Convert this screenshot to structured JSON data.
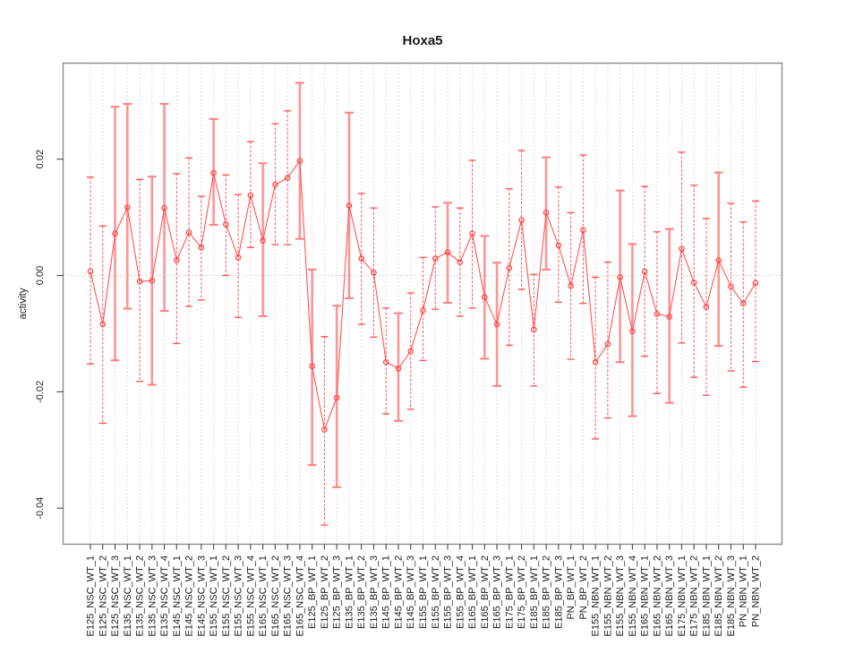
{
  "chart_data": {
    "type": "line",
    "subtype": "points-with-error-bars",
    "title": "Hoxa5",
    "xlabel": "",
    "ylabel": "activity",
    "legend": "none",
    "grid": "vertical dotted line at every category; dotted horizontal line at y=0",
    "ylim": [
      -0.0462,
      0.0365
    ],
    "yticks": [
      0.02,
      0.0,
      -0.02,
      -0.04
    ],
    "ytick_labels": [
      "0.02",
      "0.00",
      "-0.02",
      "-0.04"
    ],
    "marker": "open-circle",
    "categories": [
      "E125_NSC_WT_1",
      "E125_NSC_WT_2",
      "E125_NSC_WT_3",
      "E135_NSC_WT_1",
      "E135_NSC_WT_2",
      "E135_NSC_WT_3",
      "E135_NSC_WT_4",
      "E145_NSC_WT_1",
      "E145_NSC_WT_2",
      "E145_NSC_WT_3",
      "E155_NSC_WT_1",
      "E155_NSC_WT_2",
      "E155_NSC_WT_3",
      "E155_NSC_WT_4",
      "E165_NSC_WT_1",
      "E165_NSC_WT_2",
      "E165_NSC_WT_3",
      "E165_NSC_WT_4",
      "E125_BP_WT_1",
      "E125_BP_WT_2",
      "E125_BP_WT_3",
      "E135_BP_WT_1",
      "E135_BP_WT_2",
      "E135_BP_WT_3",
      "E145_BP_WT_1",
      "E145_BP_WT_2",
      "E145_BP_WT_3",
      "E155_BP_WT_1",
      "E155_BP_WT_2",
      "E155_BP_WT_3",
      "E155_BP_WT_4",
      "E165_BP_WT_1",
      "E165_BP_WT_2",
      "E165_BP_WT_3",
      "E175_BP_WT_1",
      "E175_BP_WT_2",
      "E185_BP_WT_1",
      "E185_BP_WT_2",
      "E185_BP_WT_3",
      "PN_BP_WT_1",
      "PN_BP_WT_2",
      "E155_NBN_WT_1",
      "E155_NBN_WT_2",
      "E155_NBN_WT_3",
      "E155_NBN_WT_4",
      "E165_NBN_WT_1",
      "E165_NBN_WT_2",
      "E165_NBN_WT_3",
      "E175_NBN_WT_1",
      "E175_NBN_WT_2",
      "E185_NBN_WT_1",
      "E185_NBN_WT_2",
      "E185_NBN_WT_3",
      "PN_NBN_WT_1",
      "PN_NBN_WT_2"
    ],
    "series": [
      {
        "name": "activity",
        "values": [
          0.0007,
          -0.0084,
          0.0072,
          0.0117,
          -0.001,
          -0.0009,
          0.0116,
          0.0026,
          0.0074,
          0.0048,
          0.0176,
          0.0088,
          0.0031,
          0.0138,
          0.006,
          0.0156,
          0.0168,
          0.0197,
          -0.0156,
          -0.0265,
          -0.021,
          0.012,
          0.0029,
          0.0005,
          -0.0149,
          -0.016,
          -0.013,
          -0.006,
          0.0029,
          0.004,
          0.0023,
          0.0072,
          -0.0037,
          -0.0084,
          0.0013,
          0.0095,
          -0.0093,
          0.0108,
          0.0052,
          -0.0018,
          0.0078,
          -0.0149,
          -0.0118,
          -0.0003,
          -0.0096,
          0.0007,
          -0.0066,
          -0.0071,
          0.0046,
          -0.0012,
          -0.0054,
          0.0026,
          -0.0019,
          -0.0048,
          -0.0013
        ]
      }
    ],
    "error_lower": [
      -0.0152,
      -0.0254,
      -0.0146,
      -0.0057,
      -0.0182,
      -0.0188,
      -0.0061,
      -0.0117,
      -0.0053,
      -0.0042,
      0.0087,
      0.0,
      -0.0072,
      0.0048,
      -0.007,
      0.0053,
      0.0053,
      0.0063,
      -0.0326,
      -0.0429,
      -0.0364,
      -0.0039,
      -0.0084,
      -0.0106,
      -0.0238,
      -0.025,
      -0.023,
      -0.0146,
      -0.0058,
      -0.0047,
      -0.007,
      -0.0056,
      -0.0143,
      -0.019,
      -0.012,
      -0.0024,
      -0.019,
      0.001,
      -0.0046,
      -0.0144,
      -0.0048,
      -0.0281,
      -0.0245,
      -0.0149,
      -0.0242,
      -0.0139,
      -0.0203,
      -0.0219,
      -0.0116,
      -0.0175,
      -0.0206,
      -0.0121,
      -0.0164,
      -0.0192,
      -0.0148
    ],
    "error_upper": [
      0.0169,
      0.0085,
      0.029,
      0.0295,
      0.0165,
      0.017,
      0.0295,
      0.0175,
      0.0202,
      0.0136,
      0.0269,
      0.0173,
      0.0139,
      0.023,
      0.0193,
      0.0261,
      0.0283,
      0.0331,
      0.001,
      -0.0105,
      -0.0052,
      0.028,
      0.0141,
      0.0116,
      -0.0056,
      -0.0065,
      -0.003,
      0.0031,
      0.0118,
      0.0125,
      0.0116,
      0.0198,
      0.0068,
      0.0022,
      0.0149,
      0.0215,
      0.0002,
      0.0203,
      0.0152,
      0.0108,
      0.0207,
      -0.0003,
      0.0023,
      0.0146,
      0.0054,
      0.0153,
      0.0075,
      0.008,
      0.0212,
      0.0155,
      0.0098,
      0.0177,
      0.0124,
      0.0092,
      0.0128
    ],
    "bar_styles": [
      "dashed",
      "dashed",
      "pale",
      "pale",
      "dashed",
      "pale",
      "pale",
      "dashed",
      "dashed",
      "dashed",
      "pale",
      "dashed",
      "dashed",
      "dashed",
      "pale",
      "dashed",
      "dashed",
      "pale",
      "pale",
      "dashed",
      "pale",
      "pale",
      "dashed",
      "dashed",
      "dashed",
      "pale",
      "dashed",
      "dashed",
      "dashed",
      "pale",
      "dashed",
      "dashed",
      "pale",
      "pale",
      "dashed",
      "dashed",
      "dashed",
      "pale",
      "dashed",
      "dashed",
      "dashed",
      "dashed",
      "dashed",
      "pale",
      "pale",
      "dashed",
      "dashed",
      "pale",
      "dashed",
      "dashed",
      "dashed",
      "pale",
      "dashed",
      "dashed",
      "dashed"
    ]
  },
  "colors": {
    "point": "#ff4343",
    "series_line": "#ff5555",
    "bar_pale": "#ff9494",
    "bar_pale_cap": "#ff8080",
    "bar_dashed": "#ff4d4d",
    "grid": "#d4d4d4",
    "zero_line": "#c8c8c8",
    "box": "#8a8a8a",
    "tick": "#444444",
    "text": "#1a1a1a"
  }
}
